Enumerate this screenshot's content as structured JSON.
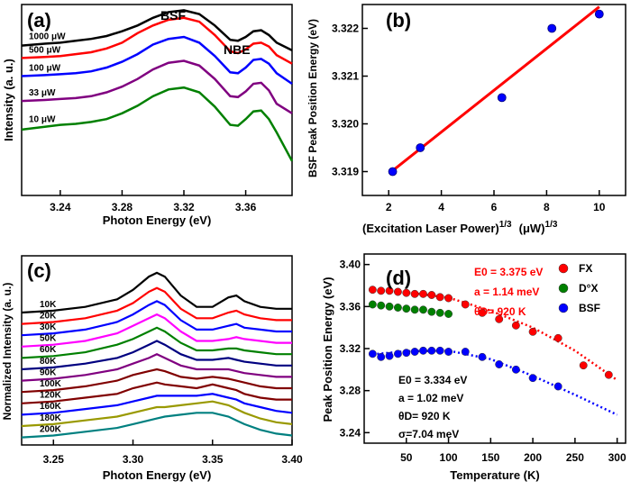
{
  "chart_data": [
    {
      "type": "line",
      "panel_label": "(a)",
      "xlabel": "Photon Energy (eV)",
      "ylabel": "Intensity (a. u.)",
      "xlim": [
        3.215,
        3.39
      ],
      "ylim": [
        0,
        1
      ],
      "xticks": [
        3.24,
        3.28,
        3.32,
        3.36
      ],
      "xticklabels": [
        "3.24",
        "3.28",
        "3.32",
        "3.36"
      ],
      "annotations": [
        "BSF",
        "NBE"
      ],
      "series": [
        {
          "name": "1000 μW",
          "color": "#000000",
          "x": [
            3.215,
            3.23,
            3.24,
            3.25,
            3.26,
            3.27,
            3.28,
            3.29,
            3.3,
            3.31,
            3.32,
            3.33,
            3.34,
            3.35,
            3.355,
            3.36,
            3.365,
            3.37,
            3.375,
            3.38,
            3.39
          ],
          "y": [
            0.785,
            0.795,
            0.8,
            0.81,
            0.82,
            0.835,
            0.86,
            0.89,
            0.93,
            0.96,
            0.97,
            0.95,
            0.89,
            0.815,
            0.81,
            0.83,
            0.86,
            0.865,
            0.84,
            0.8,
            0.76
          ]
        },
        {
          "name": "500 μW",
          "color": "#ff0000",
          "x": [
            3.215,
            3.23,
            3.24,
            3.25,
            3.26,
            3.27,
            3.28,
            3.29,
            3.3,
            3.31,
            3.32,
            3.33,
            3.34,
            3.35,
            3.355,
            3.36,
            3.365,
            3.37,
            3.375,
            3.38,
            3.39
          ],
          "y": [
            0.72,
            0.725,
            0.73,
            0.74,
            0.75,
            0.77,
            0.8,
            0.85,
            0.89,
            0.92,
            0.93,
            0.91,
            0.84,
            0.755,
            0.745,
            0.765,
            0.795,
            0.8,
            0.78,
            0.735,
            0.69
          ]
        },
        {
          "name": "100 μW",
          "color": "#0000ff",
          "x": [
            3.215,
            3.23,
            3.24,
            3.25,
            3.26,
            3.27,
            3.28,
            3.29,
            3.3,
            3.31,
            3.32,
            3.33,
            3.34,
            3.35,
            3.355,
            3.36,
            3.365,
            3.37,
            3.375,
            3.38,
            3.39
          ],
          "y": [
            0.625,
            0.63,
            0.635,
            0.64,
            0.65,
            0.67,
            0.7,
            0.74,
            0.79,
            0.82,
            0.83,
            0.8,
            0.73,
            0.645,
            0.64,
            0.67,
            0.71,
            0.715,
            0.69,
            0.64,
            0.585
          ]
        },
        {
          "name": "33 μW",
          "color": "#800080",
          "x": [
            3.215,
            3.23,
            3.24,
            3.25,
            3.26,
            3.27,
            3.28,
            3.29,
            3.3,
            3.31,
            3.32,
            3.33,
            3.34,
            3.35,
            3.355,
            3.36,
            3.365,
            3.37,
            3.375,
            3.38,
            3.39
          ],
          "y": [
            0.495,
            0.5,
            0.505,
            0.51,
            0.52,
            0.54,
            0.57,
            0.61,
            0.66,
            0.695,
            0.705,
            0.68,
            0.61,
            0.52,
            0.515,
            0.545,
            0.585,
            0.59,
            0.55,
            0.48,
            0.43
          ]
        },
        {
          "name": "10 μW",
          "color": "#008000",
          "x": [
            3.215,
            3.23,
            3.24,
            3.25,
            3.26,
            3.27,
            3.28,
            3.29,
            3.3,
            3.31,
            3.32,
            3.33,
            3.34,
            3.35,
            3.355,
            3.36,
            3.365,
            3.37,
            3.375,
            3.38,
            3.39
          ],
          "y": [
            0.345,
            0.36,
            0.37,
            0.375,
            0.385,
            0.4,
            0.43,
            0.47,
            0.52,
            0.555,
            0.565,
            0.54,
            0.465,
            0.37,
            0.365,
            0.4,
            0.44,
            0.445,
            0.4,
            0.33,
            0.18
          ]
        }
      ]
    },
    {
      "type": "scatter",
      "panel_label": "(b)",
      "xlabel": "(Excitation Laser Power)",
      "xlabel_sup": "1/3",
      "xlabel_unit": "(μW)",
      "xlabel_unit_sup": "1/3",
      "ylabel": "BSF Peak Position Energy (eV)",
      "xlim": [
        1,
        11
      ],
      "ylim": [
        3.3185,
        3.3225
      ],
      "xticks": [
        2,
        4,
        6,
        8,
        10
      ],
      "xticklabels": [
        "2",
        "4",
        "6",
        "8",
        "10"
      ],
      "yticks": [
        3.319,
        3.32,
        3.321,
        3.322
      ],
      "yticklabels": [
        "3.319",
        "3.320",
        "3.321",
        "3.322"
      ],
      "points": {
        "x": [
          2.15,
          3.2,
          6.3,
          8.2,
          10.0
        ],
        "y": [
          3.319,
          3.3195,
          3.32055,
          3.322,
          3.3223
        ]
      },
      "fit": {
        "x": [
          2.15,
          10.0
        ],
        "y": [
          3.31902,
          3.32245
        ],
        "color": "#ff0000"
      },
      "marker_color": "#0000ff"
    },
    {
      "type": "line",
      "panel_label": "(c)",
      "xlabel": "Photon Energy (eV)",
      "ylabel": "Normalized Intensity (a. u.)",
      "xlim": [
        3.23,
        3.4
      ],
      "ylim": [
        0,
        1
      ],
      "xticks": [
        3.25,
        3.3,
        3.35,
        3.4
      ],
      "xticklabels": [
        "3.25",
        "3.30",
        "3.35",
        "3.40"
      ],
      "x": [
        3.23,
        3.25,
        3.27,
        3.29,
        3.3,
        3.31,
        3.315,
        3.32,
        3.33,
        3.34,
        3.35,
        3.36,
        3.365,
        3.37,
        3.38,
        3.39,
        3.4
      ],
      "series": [
        {
          "name": "10K",
          "color": "#000000",
          "offset": 0.7,
          "y": [
            0.0,
            0.01,
            0.03,
            0.07,
            0.12,
            0.19,
            0.21,
            0.19,
            0.09,
            0.03,
            0.03,
            0.08,
            0.09,
            0.06,
            0.03,
            0.02,
            0.02
          ]
        },
        {
          "name": "20K",
          "color": "#ff0000",
          "offset": 0.64,
          "y": [
            0.0,
            0.01,
            0.03,
            0.07,
            0.11,
            0.17,
            0.19,
            0.17,
            0.08,
            0.03,
            0.03,
            0.06,
            0.07,
            0.05,
            0.03,
            0.02,
            0.02
          ]
        },
        {
          "name": "30K",
          "color": "#0000ff",
          "offset": 0.58,
          "y": [
            0.0,
            0.01,
            0.03,
            0.07,
            0.11,
            0.16,
            0.18,
            0.16,
            0.08,
            0.03,
            0.03,
            0.05,
            0.06,
            0.04,
            0.03,
            0.02,
            0.02
          ]
        },
        {
          "name": "50K",
          "color": "#ff00ff",
          "offset": 0.52,
          "y": [
            0.0,
            0.01,
            0.03,
            0.07,
            0.11,
            0.15,
            0.17,
            0.15,
            0.08,
            0.03,
            0.03,
            0.04,
            0.05,
            0.04,
            0.03,
            0.02,
            0.02
          ]
        },
        {
          "name": "60K",
          "color": "#008000",
          "offset": 0.46,
          "y": [
            0.0,
            0.01,
            0.03,
            0.07,
            0.1,
            0.14,
            0.16,
            0.14,
            0.08,
            0.04,
            0.04,
            0.05,
            0.05,
            0.04,
            0.03,
            0.02,
            0.02
          ]
        },
        {
          "name": "80K",
          "color": "#000080",
          "offset": 0.4,
          "y": [
            0.0,
            0.01,
            0.03,
            0.06,
            0.09,
            0.13,
            0.15,
            0.13,
            0.08,
            0.05,
            0.05,
            0.06,
            0.05,
            0.04,
            0.03,
            0.02,
            0.02
          ]
        },
        {
          "name": "90K",
          "color": "#800080",
          "offset": 0.34,
          "y": [
            0.0,
            0.01,
            0.03,
            0.06,
            0.09,
            0.12,
            0.14,
            0.12,
            0.08,
            0.06,
            0.06,
            0.06,
            0.05,
            0.04,
            0.03,
            0.02,
            0.02
          ]
        },
        {
          "name": "100K",
          "color": "#800000",
          "offset": 0.28,
          "y": [
            0.0,
            0.01,
            0.03,
            0.06,
            0.09,
            0.11,
            0.12,
            0.11,
            0.08,
            0.07,
            0.08,
            0.07,
            0.06,
            0.05,
            0.03,
            0.02,
            0.02
          ]
        },
        {
          "name": "120K",
          "color": "#800000",
          "offset": 0.22,
          "y": [
            0.0,
            0.01,
            0.03,
            0.05,
            0.08,
            0.1,
            0.11,
            0.1,
            0.09,
            0.08,
            0.1,
            0.08,
            0.07,
            0.05,
            0.03,
            0.02,
            0.02
          ]
        },
        {
          "name": "160K",
          "color": "#0000ff",
          "offset": 0.16,
          "y": [
            0.0,
            0.01,
            0.03,
            0.05,
            0.07,
            0.09,
            0.1,
            0.1,
            0.1,
            0.1,
            0.11,
            0.09,
            0.08,
            0.06,
            0.04,
            0.02,
            0.01
          ]
        },
        {
          "name": "180K",
          "color": "#999900",
          "offset": 0.1,
          "y": [
            0.0,
            0.01,
            0.03,
            0.05,
            0.07,
            0.09,
            0.1,
            0.1,
            0.11,
            0.12,
            0.13,
            0.11,
            0.09,
            0.07,
            0.04,
            0.02,
            0.01
          ]
        },
        {
          "name": "200K",
          "color": "#008080",
          "offset": 0.04,
          "y": [
            0.0,
            0.01,
            0.03,
            0.05,
            0.07,
            0.09,
            0.1,
            0.11,
            0.12,
            0.13,
            0.13,
            0.11,
            0.09,
            0.07,
            0.04,
            0.02,
            0.01
          ]
        }
      ]
    },
    {
      "type": "scatter",
      "panel_label": "(d)",
      "xlabel": "Temperature (K)",
      "ylabel": "Peak Position Energy (eV)",
      "xlim": [
        0,
        310
      ],
      "ylim": [
        3.23,
        3.41
      ],
      "xticks": [
        50,
        100,
        150,
        200,
        250,
        300
      ],
      "xticklabels": [
        "50",
        "100",
        "150",
        "200",
        "250",
        "300"
      ],
      "yticks": [
        3.24,
        3.28,
        3.32,
        3.36,
        3.4
      ],
      "yticklabels": [
        "3.24",
        "3.28",
        "3.32",
        "3.36",
        "3.40"
      ],
      "legend": [
        "FX",
        "D°X",
        "BSF"
      ],
      "legend_position": "top-right",
      "annotation_red": {
        "e0": "E0 = 3.375 eV",
        "a": "a = 1.14 meV",
        "theta": "θD= 920 K"
      },
      "annotation_black": {
        "e0": "E0 = 3.334 eV",
        "a": "a = 1.02 meV",
        "theta": "θD= 920 K",
        "sigma": "σ=7.04 meV"
      },
      "series": [
        {
          "name": "FX",
          "color": "#ff0000",
          "x": [
            10,
            20,
            30,
            40,
            50,
            60,
            70,
            80,
            90,
            100,
            120,
            140,
            160,
            180,
            200,
            230,
            260,
            290
          ],
          "y": [
            3.376,
            3.375,
            3.375,
            3.374,
            3.373,
            3.372,
            3.372,
            3.371,
            3.369,
            3.368,
            3.362,
            3.354,
            3.348,
            3.342,
            3.336,
            3.33,
            3.304,
            3.295
          ]
        },
        {
          "name": "D°X",
          "color": "#008000",
          "x": [
            10,
            20,
            30,
            40,
            50,
            60,
            70,
            80,
            90,
            100
          ],
          "y": [
            3.362,
            3.361,
            3.36,
            3.359,
            3.358,
            3.357,
            3.357,
            3.355,
            3.354,
            3.353
          ]
        },
        {
          "name": "BSF",
          "color": "#0000ff",
          "x": [
            10,
            20,
            30,
            40,
            50,
            60,
            70,
            80,
            90,
            100,
            120,
            140,
            160,
            180,
            200,
            230
          ],
          "y": [
            3.315,
            3.312,
            3.313,
            3.315,
            3.316,
            3.317,
            3.318,
            3.318,
            3.318,
            3.317,
            3.317,
            3.312,
            3.305,
            3.3,
            3.292,
            3.284
          ]
        }
      ],
      "fits": [
        {
          "color": "#ff0000",
          "x": [
            10,
            50,
            100,
            150,
            200,
            250,
            300
          ],
          "y": [
            3.3755,
            3.3735,
            3.3685,
            3.356,
            3.34,
            3.318,
            3.29
          ]
        },
        {
          "color": "#0000ff",
          "x": [
            10,
            50,
            100,
            150,
            200,
            250,
            300
          ],
          "y": [
            3.3145,
            3.3175,
            3.318,
            3.31,
            3.294,
            3.276,
            3.257
          ]
        }
      ]
    }
  ]
}
